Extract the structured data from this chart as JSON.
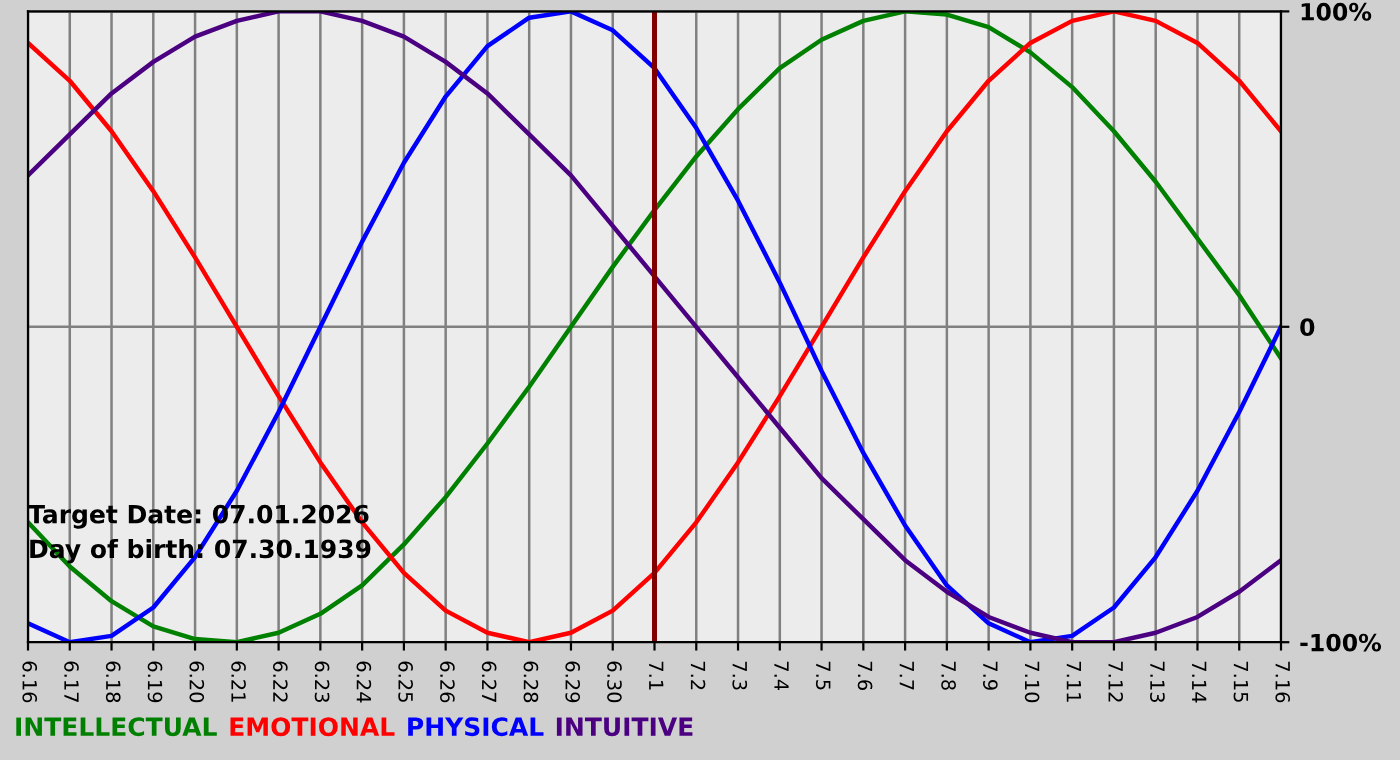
{
  "chart_data": {
    "type": "line",
    "categories": [
      "6.16",
      "6.17",
      "6.18",
      "6.19",
      "6.20",
      "6.21",
      "6.22",
      "6.23",
      "6.24",
      "6.25",
      "6.26",
      "6.27",
      "6.28",
      "6.29",
      "6.30",
      "7.1",
      "7.2",
      "7.3",
      "7.4",
      "7.5",
      "7.6",
      "7.7",
      "7.8",
      "7.9",
      "7.10",
      "7.11",
      "7.12",
      "7.13",
      "7.14",
      "7.15",
      "7.16"
    ],
    "series": [
      {
        "name": "INTELLECTUAL",
        "color": "#008000",
        "values": [
          -62,
          -76,
          -87,
          -95,
          -99,
          -100,
          -97,
          -91,
          -82,
          -69,
          -54,
          -37,
          -19,
          0,
          19,
          37,
          54,
          69,
          82,
          91,
          97,
          100,
          99,
          95,
          87,
          76,
          62,
          46,
          28,
          10,
          -10
        ]
      },
      {
        "name": "EMOTIONAL",
        "color": "#ff0000",
        "values": [
          90,
          78,
          62,
          43,
          22,
          0,
          -22,
          -43,
          -62,
          -78,
          -90,
          -97,
          -100,
          -97,
          -90,
          -78,
          -62,
          -43,
          -22,
          0,
          22,
          43,
          62,
          78,
          90,
          97,
          100,
          97,
          90,
          78,
          62
        ]
      },
      {
        "name": "PHYSICAL",
        "color": "#0000ff",
        "values": [
          -94,
          -100,
          -98,
          -89,
          -73,
          -52,
          -27,
          0,
          27,
          52,
          73,
          89,
          98,
          100,
          94,
          82,
          63,
          40,
          14,
          -14,
          -40,
          -63,
          -82,
          -94,
          -100,
          -98,
          -89,
          -73,
          -52,
          -27,
          0
        ]
      },
      {
        "name": "INTUITIVE",
        "color": "#4b0082",
        "values": [
          48,
          61,
          74,
          84,
          92,
          97,
          100,
          100,
          97,
          92,
          84,
          74,
          61,
          48,
          32,
          16,
          0,
          -16,
          -32,
          -48,
          -61,
          -74,
          -84,
          -92,
          -97,
          -100,
          -100,
          -97,
          -92,
          -84,
          -74
        ]
      }
    ],
    "ylim": [
      -100,
      100
    ],
    "yticks": [
      {
        "value": 100,
        "label": "100%"
      },
      0,
      {
        "value": -100,
        "label": "-100%"
      }
    ],
    "grid": true,
    "legend": "bottom left",
    "ref_lines": [
      {
        "axis": "x",
        "value": "7.1",
        "color": "#800000"
      }
    ],
    "annotations": [
      "Target Date: 07.01.2026",
      "Day of birth: 07.30.1939"
    ]
  }
}
